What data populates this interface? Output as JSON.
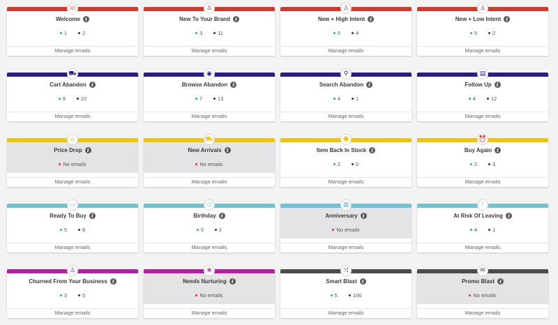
{
  "colors": {
    "row1": "#d33a2c",
    "row2": "#2b1b85",
    "row3": "#ecc613",
    "row4": "#71c3d3",
    "row5": "#b61fa6",
    "row5_dark": "#4b4c50",
    "active_dot": "#2bb673",
    "inactive_dot": "#333333",
    "no_emails_dot": "#d43535"
  },
  "manage_label": "Manage emails",
  "no_emails_label": "No emails",
  "cards": [
    {
      "title": "Welcome",
      "icon": "chat-bubble-icon",
      "glyph": "☏",
      "active": "1",
      "inactive": "2"
    },
    {
      "title": "New To Your Brand",
      "icon": "person-badge-icon",
      "glyph": "♙",
      "active": "3",
      "inactive": "11"
    },
    {
      "title": "New + High Intent",
      "icon": "person-badge-icon",
      "glyph": "♙",
      "active": "5",
      "inactive": "4"
    },
    {
      "title": "New + Low Intent",
      "icon": "person-badge-icon",
      "glyph": "♙",
      "active": "5",
      "inactive": "2"
    },
    {
      "title": "Cart Abandon",
      "icon": "cart-icon",
      "glyph": "⛟",
      "active": "9",
      "inactive": "22"
    },
    {
      "title": "Browse Abandon",
      "icon": "eye-icon",
      "glyph": "◉",
      "active": "7",
      "inactive": "13"
    },
    {
      "title": "Search Abandon",
      "icon": "search-icon",
      "glyph": "⚲",
      "active": "4",
      "inactive": "1"
    },
    {
      "title": "Follow Up",
      "icon": "document-icon",
      "glyph": "▤",
      "active": "4",
      "inactive": "12"
    },
    {
      "title": "Price Drop",
      "icon": "price-tag-icon",
      "glyph": "⌂",
      "empty": true
    },
    {
      "title": "New Arrivals",
      "icon": "truck-icon",
      "glyph": "⛟",
      "empty": true
    },
    {
      "title": "Item Back In Stock",
      "icon": "box-icon",
      "glyph": "⬢",
      "active": "2",
      "inactive": "0"
    },
    {
      "title": "Buy Again",
      "icon": "alarm-clock-icon",
      "glyph": "⏰",
      "active": "2",
      "inactive": "3"
    },
    {
      "title": "Ready To Buy",
      "icon": "credit-card-icon",
      "glyph": "▭",
      "active": "5",
      "inactive": "8"
    },
    {
      "title": "Birthday",
      "icon": "cake-icon",
      "glyph": "⛫",
      "active": "0",
      "inactive": "2"
    },
    {
      "title": "Anniversary",
      "icon": "calendar-icon",
      "glyph": "▦",
      "empty": true
    },
    {
      "title": "At Risk Of Leaving",
      "icon": "alert-icon",
      "glyph": "!",
      "active": "4",
      "inactive": "1"
    },
    {
      "title": "Churned From Your Business",
      "icon": "person-badge-icon",
      "glyph": "♙",
      "active": "3",
      "inactive": "5"
    },
    {
      "title": "Needs Nurturing",
      "icon": "nurture-icon",
      "glyph": "❀",
      "empty": true
    },
    {
      "title": "Smart Blast",
      "icon": "shuffle-icon",
      "glyph": "⤨",
      "active": "5",
      "inactive": "106"
    },
    {
      "title": "Promo Blast",
      "icon": "envelope-icon",
      "glyph": "✉",
      "empty": true
    }
  ]
}
